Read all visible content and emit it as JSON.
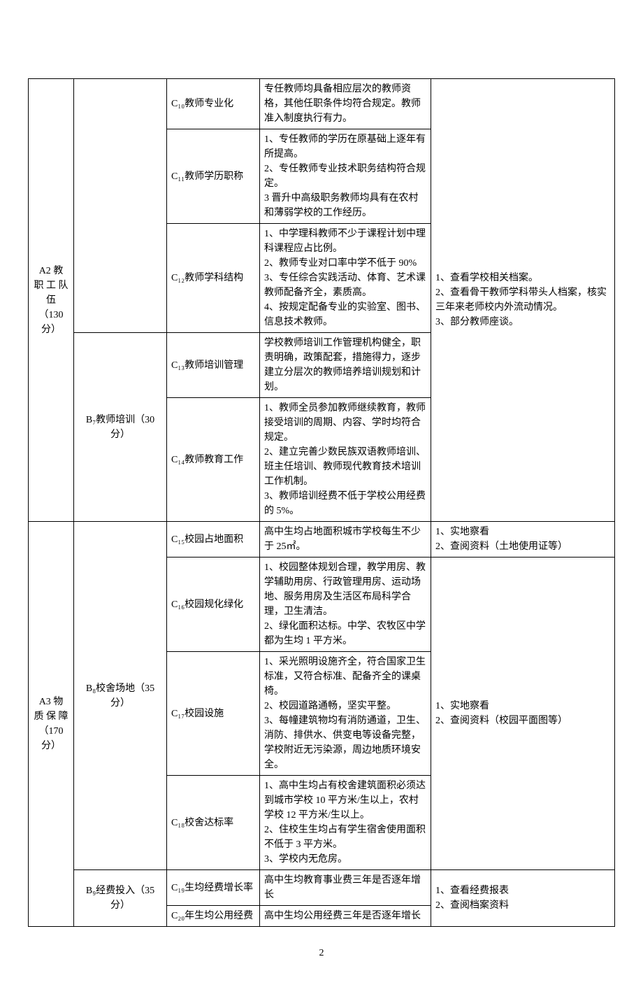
{
  "pageNumber": "2",
  "colA": {
    "a2": {
      "lines": [
        "A2",
        "教",
        "职",
        "工",
        "队",
        "伍",
        "（130",
        "分）"
      ]
    },
    "a3": {
      "lines": [
        "A3",
        "物",
        "质",
        "保",
        "障",
        "（170",
        "分）"
      ]
    }
  },
  "colB": {
    "b7": "B₇教师培训（30 分）",
    "b8": "B₈校舍场地（35 分）",
    "b9": "B₉经费投入（35 分）"
  },
  "colC": {
    "c10": "C₁₀教师专业化",
    "c11": "C₁₁教师学历职称",
    "c12": "C₁₂教师学科结构",
    "c13": "C₁₃教师培训管理",
    "c14": "C₁₄教师教育工作",
    "c15": "C₁₅校园占地面积",
    "c16": "C₁₆校园规化绿化",
    "c17": "C₁₇校园设施",
    "c18": "C₁₈校舍达标率",
    "c19": "C₁₉生均经费增长率",
    "c20": "C₂₀年生均公用经费"
  },
  "colD": {
    "d10": "专任教师均具备相应层次的教师资格，其他任职条件均符合规定。教师准入制度执行有力。",
    "d11": "1、专任教师的学历在原基础上逐年有所提高。\n2、专任教师专业技术职务结构符合规定。\n3 晋升中高级职务教师均具有在农村和薄弱学校的工作经历。",
    "d12": "1、中学理科教师不少于课程计划中理科课程应占比例。\n2、教师专业对口率中学不低于 90%\n3、专任综合实践活动、体育、艺术课教师配备齐全，素质高。\n4、按规定配备专业的实验室、图书、信息技术教师。",
    "d13": "学校教师培训工作管理机构健全，职责明确，政策配套，措施得力，逐步建立分层次的教师培养培训规划和计划。",
    "d14": "1、教师全员参加教师继续教育，教师接受培训的周期、内容、学时均符合规定。\n2、建立完善少数民族双语教师培训、班主任培训、教师现代教育技术培训工作机制。\n3、教师培训经费不低于学校公用经费的 5%。",
    "d15": "高中生均占地面积城市学校每生不少于 25㎡。",
    "d16": "1、校园整体规划合理，教学用房、教学辅助用房、行政管理用房、运动场地、服务用房及生活区布局科学合理，卫生清洁。\n2、绿化面积达标。中学、农牧区中学都为生均 1 平方米。",
    "d17": "1、采光照明设施齐全，符合国家卫生标准，又符合标准、配备齐全的课桌椅。\n2、校园道路通畅，坚实平整。\n3、每幢建筑物均有消防通道，卫生、消防、排供水、供变电等设备完整，学校附近无污染源，周边地质环境安全。",
    "d18": "1、高中生均占有校舍建筑面积必须达到城市学校 10 平方米/生以上，农村学校 12 平方米/生以上。\n2、住校生生均占有学生宿舍使用面积不低于 3 平方米。\n3、学校内无危房。",
    "d19": "高中生均教育事业费三年是否逐年增长",
    "d20": "高中生均公用经费三年是否逐年增长"
  },
  "colE": {
    "e_a2": "1、查看学校相关档案。\n2、查看骨干教师学科带头人档案，核实三年来老师校内外流动情况。\n3、部分教师座谈。",
    "e_c15": "1、实地察看\n2、查阅资料（土地使用证等）",
    "e_b8rest": "1、实地察看\n2、查阅资料（校园平面图等）",
    "e_b9": "1、查看经费报表\n2、查阅档案资料"
  }
}
